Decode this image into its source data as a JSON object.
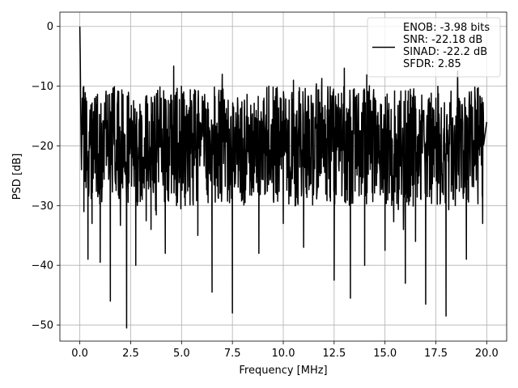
{
  "chart_data": {
    "type": "line",
    "xlabel": "Frequency [MHz]",
    "ylabel": "PSD [dB]",
    "xlim": [
      -0.98,
      20.98
    ],
    "ylim": [
      -52.7,
      2.4
    ],
    "xticks": [
      0.0,
      2.5,
      5.0,
      7.5,
      10.0,
      12.5,
      15.0,
      17.5,
      20.0
    ],
    "xtick_labels": [
      "0.0",
      "2.5",
      "5.0",
      "7.5",
      "10.0",
      "12.5",
      "15.0",
      "17.5",
      "20.0"
    ],
    "yticks": [
      0,
      -10,
      -20,
      -30,
      -40,
      -50
    ],
    "ytick_labels": [
      "0",
      "−10",
      "−20",
      "−30",
      "−40",
      "−50"
    ],
    "grid": true,
    "legend_position": "top-right",
    "legend_entries": [
      "ENOB: -3.98 bits\nSNR: -22.18 dB\nSINAD: -22.2 dB\nSFDR: 2.85"
    ],
    "series": [
      {
        "color": "#000000",
        "noise_band_db": [
          -30,
          -10
        ],
        "x": [
          0.0,
          0.02,
          0.05,
          0.08,
          0.12,
          0.2,
          0.3,
          0.4,
          0.5,
          0.6,
          0.8,
          1.0,
          1.2,
          1.5,
          2.0,
          2.3,
          2.5,
          2.75,
          3.0,
          3.5,
          4.0,
          4.2,
          5.0,
          5.8,
          6.0,
          6.5,
          7.0,
          7.5,
          8.0,
          8.8,
          9.5,
          10.0,
          10.5,
          11.0,
          11.8,
          12.5,
          13.0,
          13.3,
          13.5,
          14.0,
          14.5,
          15.0,
          15.5,
          16.0,
          16.3,
          16.5,
          17.0,
          17.5,
          18.0,
          18.5,
          19.0,
          19.5,
          19.8,
          20.0
        ],
        "y": [
          0.0,
          -5.0,
          -16.0,
          -24.0,
          -12.0,
          -31.0,
          -20.0,
          -39.0,
          -14.0,
          -33.0,
          -18.0,
          -39.5,
          -22.0,
          -46.0,
          -28.0,
          -50.5,
          -20.0,
          -40.0,
          -24.0,
          -34.0,
          -12.0,
          -38.0,
          -19.0,
          -35.0,
          -17.0,
          -44.5,
          -8.0,
          -48.0,
          -22.0,
          -38.0,
          -15.0,
          -33.0,
          -9.0,
          -37.0,
          -25.0,
          -42.5,
          -7.0,
          -45.5,
          -18.0,
          -40.0,
          -12.0,
          -37.5,
          -21.0,
          -43.0,
          -15.0,
          -36.0,
          -46.5,
          -12.0,
          -48.5,
          -22.0,
          -39.0,
          -14.0,
          -33.0,
          -16.0
        ]
      }
    ]
  }
}
